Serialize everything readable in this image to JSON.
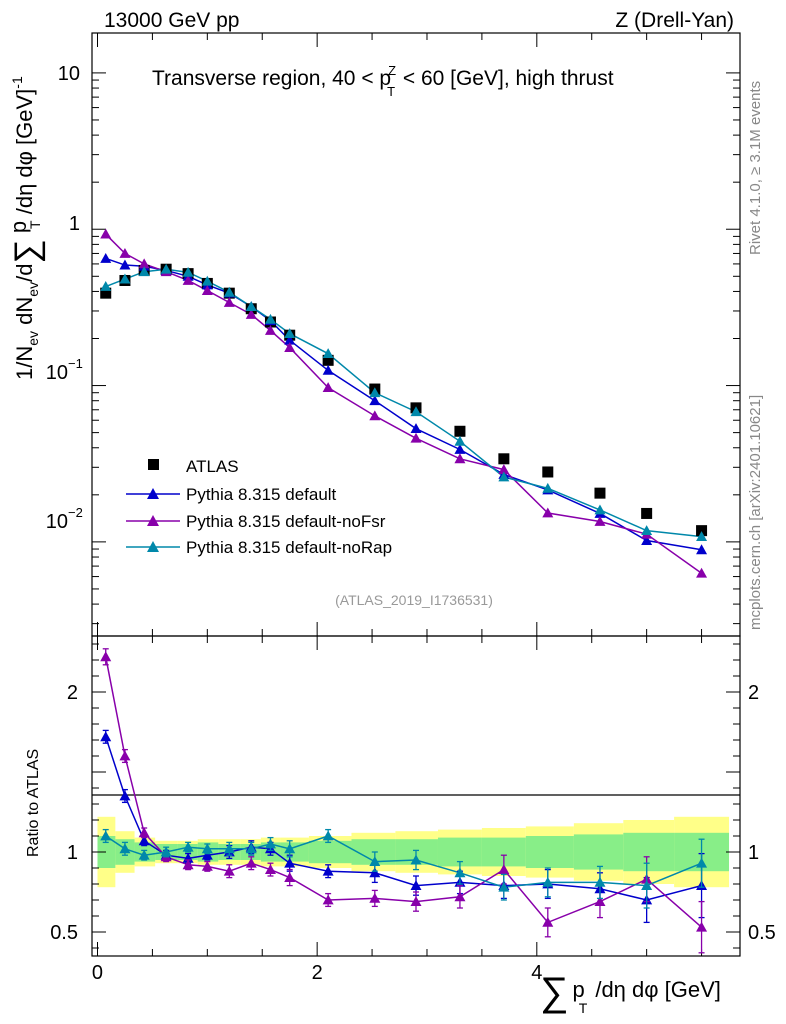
{
  "header": {
    "energy_label": "13000 GeV pp",
    "process_label": "Z (Drell-Yan)",
    "side_top": "Rivet 4.1.0, ≥ 3.1M events",
    "side_bottom": "mcplots.cern.ch [arXiv:2401.10621]"
  },
  "chart_data": {
    "type": "scatter",
    "title": "Transverse region, 40 < pT^Z < 60 [GeV], high thrust",
    "title_parts": {
      "prefix": "Transverse region, 40 < p",
      "sup": "Z",
      "sub": "T",
      "suffix": " < 60 [GeV], high thrust"
    },
    "analysis_id": "(ATLAS_2019_I1736531)",
    "xlabel": "∑ pT /dη dφ [GeV]",
    "xlabel_parts": {
      "sigma": "∑",
      "p": "p",
      "sub": "T",
      "rest": "/dη dφ [GeV]"
    },
    "ylabel": "1/Nev dNev/d∑ pT /dη dφ [GeV]^-1",
    "ylabel_parts": {
      "a": "1/N",
      "ev": "ev",
      "b": " dN",
      "c": "/d",
      "sigma": "∑",
      "p": " p",
      "t": "T",
      "d": " /dη dφ  [GeV]",
      "sup": "-1"
    },
    "ratio_ylabel": "Ratio to ATLAS",
    "xlim": [
      -0.05,
      5.85
    ],
    "ylim_main": [
      0.0025,
      18
    ],
    "ylim_ratio": [
      0.35,
      2.35
    ],
    "x_ticks": [
      0,
      2,
      4
    ],
    "x_tick_labels": [
      "0",
      "2",
      "4"
    ],
    "y_ticks_main": [
      0.01,
      0.1,
      1,
      10
    ],
    "y_tick_labels_main": {
      "ten": "10",
      "one": "1",
      "base": "10",
      "exp_m1": "−1",
      "exp_m2": "−2"
    },
    "y_ticks_ratio": [
      0.5,
      1,
      2
    ],
    "y_tick_labels_ratio": [
      "0.5",
      "1",
      "2"
    ],
    "x": [
      0.075,
      0.25,
      0.425,
      0.625,
      0.825,
      1.0,
      1.2,
      1.4,
      1.575,
      1.75,
      2.1,
      2.525,
      2.9,
      3.3,
      3.7,
      4.1,
      4.575,
      5.0,
      5.5
    ],
    "legend": [
      "ATLAS",
      "Pythia 8.315 default",
      "Pythia 8.315 default-noFsr",
      "Pythia 8.315 default-noRap"
    ],
    "series": [
      {
        "name": "ATLAS",
        "color": "#000000",
        "marker": "square",
        "values": [
          0.39,
          0.47,
          0.545,
          0.555,
          0.52,
          0.45,
          0.39,
          0.31,
          0.255,
          0.21,
          0.145,
          0.095,
          0.072,
          0.051,
          0.034,
          0.028,
          0.0205,
          0.0152,
          0.0118
        ],
        "band_inner": [
          0.1,
          0.08,
          0.06,
          0.05,
          0.05,
          0.06,
          0.05,
          0.05,
          0.06,
          0.06,
          0.07,
          0.08,
          0.08,
          0.09,
          0.09,
          0.1,
          0.11,
          0.12,
          0.12
        ],
        "band_outer": [
          0.22,
          0.13,
          0.09,
          0.07,
          0.07,
          0.08,
          0.08,
          0.08,
          0.09,
          0.09,
          0.1,
          0.12,
          0.13,
          0.14,
          0.15,
          0.16,
          0.18,
          0.2,
          0.22
        ]
      },
      {
        "name": "Pythia 8.315 default",
        "color": "#0000cc",
        "marker": "triangle",
        "values": [
          0.65,
          0.59,
          0.58,
          0.545,
          0.5,
          0.44,
          0.39,
          0.32,
          0.26,
          0.195,
          0.125,
          0.08,
          0.053,
          0.039,
          0.027,
          0.0215,
          0.0152,
          0.0102,
          0.0089
        ],
        "ratio": [
          1.72,
          1.35,
          1.07,
          0.98,
          0.96,
          0.98,
          1.0,
          1.03,
          1.02,
          0.93,
          0.88,
          0.87,
          0.79,
          0.81,
          0.79,
          0.8,
          0.77,
          0.7,
          0.79
        ],
        "ratio_err": [
          0.04,
          0.04,
          0.03,
          0.03,
          0.03,
          0.03,
          0.04,
          0.04,
          0.04,
          0.05,
          0.04,
          0.06,
          0.06,
          0.07,
          0.08,
          0.09,
          0.1,
          0.14,
          0.2
        ]
      },
      {
        "name": "Pythia 8.315 default-noFsr",
        "color": "#8800aa",
        "marker": "triangle",
        "values": [
          0.93,
          0.7,
          0.6,
          0.535,
          0.47,
          0.405,
          0.34,
          0.285,
          0.225,
          0.175,
          0.097,
          0.064,
          0.046,
          0.034,
          0.029,
          0.0153,
          0.0135,
          0.0112,
          0.0063
        ],
        "ratio": [
          2.22,
          1.6,
          1.12,
          0.97,
          0.92,
          0.91,
          0.88,
          0.93,
          0.89,
          0.84,
          0.7,
          0.71,
          0.69,
          0.72,
          0.89,
          0.56,
          0.69,
          0.83,
          0.53
        ],
        "ratio_err": [
          0.05,
          0.04,
          0.03,
          0.03,
          0.03,
          0.03,
          0.04,
          0.04,
          0.04,
          0.05,
          0.04,
          0.05,
          0.06,
          0.07,
          0.09,
          0.09,
          0.1,
          0.14,
          0.16
        ]
      },
      {
        "name": "Pythia 8.315 default-noRap",
        "color": "#0088aa",
        "marker": "triangle",
        "values": [
          0.43,
          0.48,
          0.535,
          0.555,
          0.53,
          0.465,
          0.395,
          0.32,
          0.265,
          0.215,
          0.16,
          0.09,
          0.068,
          0.044,
          0.026,
          0.022,
          0.016,
          0.0118,
          0.0108
        ],
        "ratio": [
          1.1,
          1.02,
          0.98,
          1.0,
          1.03,
          1.02,
          1.02,
          1.02,
          1.05,
          1.02,
          1.1,
          0.94,
          0.95,
          0.87,
          0.78,
          0.81,
          0.81,
          0.79,
          0.93
        ],
        "ratio_err": [
          0.04,
          0.04,
          0.03,
          0.03,
          0.03,
          0.03,
          0.04,
          0.04,
          0.04,
          0.05,
          0.04,
          0.06,
          0.06,
          0.07,
          0.08,
          0.09,
          0.1,
          0.14,
          0.15
        ]
      }
    ]
  }
}
